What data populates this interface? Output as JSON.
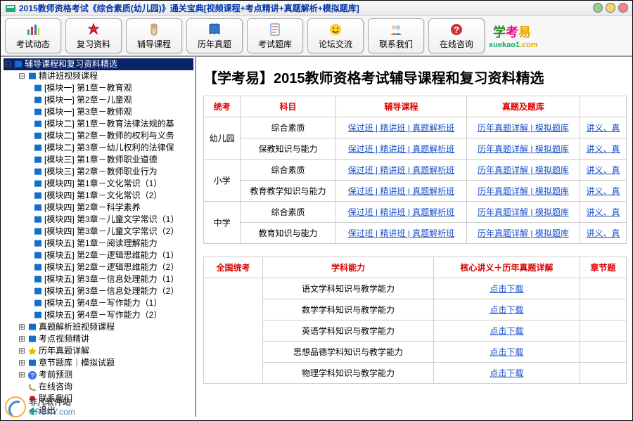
{
  "window": {
    "title": "2015教师资格考试《综合素质(幼儿园)》通关宝典[视频课程+考点精讲+真题解析+模拟题库]"
  },
  "toolbar": [
    {
      "label": "考试动态",
      "icon": "chart"
    },
    {
      "label": "复习资料",
      "icon": "badge"
    },
    {
      "label": "辅导课程",
      "icon": "hand"
    },
    {
      "label": "历年真题",
      "icon": "book"
    },
    {
      "label": "考试题库",
      "icon": "test"
    },
    {
      "label": "论坛交流",
      "icon": "smile"
    },
    {
      "label": "联系我们",
      "icon": "people"
    },
    {
      "label": "在线咨询",
      "icon": "question"
    }
  ],
  "logo": {
    "t1": "学",
    "t2": "考",
    "t3": "易",
    "sub1": "xuekao1",
    "sub2": ".com"
  },
  "tree": {
    "root_label": "辅导课程和复习资料精选",
    "exp1_label": "精讲班视频课程",
    "videos": [
      "[模块一] 第1章－教育观",
      "[模块一] 第2章－儿童观",
      "[模块一] 第3章－教师观",
      "[模块二] 第1章－教育法律法规的基",
      "[模块二] 第2章－教师的权利与义务",
      "[模块二] 第3章－幼儿权利的法律保",
      "[模块三] 第1章－教师职业道德",
      "[模块三] 第2章－教师职业行为",
      "[模块四] 第1章－文化常识（1）",
      "[模块四] 第1章－文化常识（2）",
      "[模块四] 第2章－科学素养",
      "[模块四] 第3章－儿童文学常识（1）",
      "[模块四] 第3章－儿童文学常识（2）",
      "[模块五] 第1章－阅读理解能力",
      "[模块五] 第2章－逻辑思维能力（1）",
      "[模块五] 第2章－逻辑思维能力（2）",
      "[模块五] 第3章－信息处理能力（1）",
      "[模块五] 第3章－信息处理能力（2）",
      "[模块五] 第4章－写作能力（1）",
      "[模块五] 第4章－写作能力（2）"
    ],
    "others": [
      {
        "label": "真题解析班视频课程",
        "icon": "book"
      },
      {
        "label": "考点视频精讲",
        "icon": "book"
      },
      {
        "label": "历年真题详解",
        "icon": "star"
      },
      {
        "label": "章节题库｜模拟试题",
        "icon": "book"
      },
      {
        "label": "考前预测",
        "icon": "help"
      },
      {
        "label": "在线咨询",
        "icon": "phone"
      },
      {
        "label": "联系我们",
        "icon": "msn"
      },
      {
        "label": "退出",
        "icon": "exit"
      }
    ]
  },
  "content": {
    "title_prefix": "【学考易】",
    "title": "2015教师资格考试辅导课程和复习资料精选",
    "table1": {
      "headers": [
        "统考",
        "科目",
        "辅导课程",
        "真题及题库",
        ""
      ],
      "groups": [
        {
          "level": "幼儿园",
          "rows": [
            {
              "subject": "综合素质",
              "courses": [
                "保过班",
                "精讲班",
                "真题解析班"
              ],
              "exams": [
                "历年真题详解",
                "模拟题库"
              ],
              "extra": "讲义、真"
            },
            {
              "subject": "保教知识与能力",
              "courses": [
                "保过班",
                "精讲班",
                "真题解析班"
              ],
              "exams": [
                "历年真题详解",
                "模拟题库"
              ],
              "extra": "讲义、真"
            }
          ]
        },
        {
          "level": "小学",
          "rows": [
            {
              "subject": "综合素质",
              "courses": [
                "保过班",
                "精讲班",
                "真题解析班"
              ],
              "exams": [
                "历年真题详解",
                "模拟题库"
              ],
              "extra": "讲义、真"
            },
            {
              "subject": "教育教学知识与能力",
              "courses": [
                "保过班",
                "精讲班",
                "真题解析班"
              ],
              "exams": [
                "历年真题详解",
                "模拟题库"
              ],
              "extra": "讲义、真"
            }
          ]
        },
        {
          "level": "中学",
          "rows": [
            {
              "subject": "综合素质",
              "courses": [
                "保过班",
                "精讲班",
                "真题解析班"
              ],
              "exams": [
                "历年真题详解",
                "模拟题库"
              ],
              "extra": "讲义、真"
            },
            {
              "subject": "教育知识与能力",
              "courses": [
                "保过班",
                "精讲班",
                "真题解析班"
              ],
              "exams": [
                "历年真题详解",
                "模拟题库"
              ],
              "extra": "讲义、真"
            }
          ]
        }
      ]
    },
    "table2": {
      "headers": [
        "全国统考",
        "学科能力",
        "核心讲义＋历年真题详解",
        "章节题"
      ],
      "rows": [
        {
          "subject": "语文学科知识与教学能力",
          "dl": "点击下载"
        },
        {
          "subject": "数学学科知识与教学能力",
          "dl": "点击下载"
        },
        {
          "subject": "英语学科知识与教学能力",
          "dl": "点击下载"
        },
        {
          "subject": "思想品德学科知识与教学能力",
          "dl": "点击下载"
        },
        {
          "subject": "物理学科知识与教学能力",
          "dl": "点击下载"
        }
      ]
    }
  },
  "watermark": {
    "cn": "非凡软件站",
    "en": "CRSKY.com"
  }
}
